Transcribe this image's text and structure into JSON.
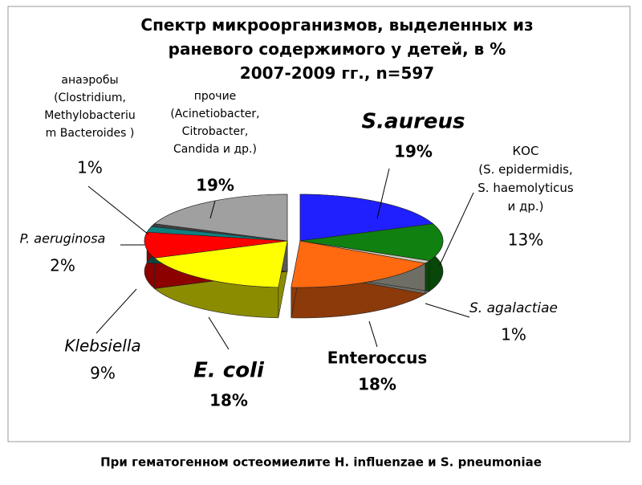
{
  "chart_data": {
    "type": "pie",
    "title": "Спектр микроорганизмов, выделенных из\nраневого содержимого у детей, в %\n2007-2009 гг., n=597",
    "caption": "При гематогенном остеомиелите H. influenzae и S. pneumoniae",
    "categories": [
      "S.aureus",
      "КОС\n(S. epidermidis,\nS. haemolyticus\nи др.)",
      "S. agalactiae",
      "Enteroccus",
      "E. coli",
      "Klebsiella",
      "P. aeruginosa",
      "анаэробы\n(Clostridium,\nMethylobacteriu\nm Bacteroides )",
      "прочие\n(Acinetiobacter,\nCitrobacter,\nCandida и др.)"
    ],
    "values": [
      19,
      13,
      1,
      18,
      18,
      9,
      2,
      1,
      19
    ],
    "value_labels": [
      "19%",
      "13%",
      "1%",
      "18%",
      "18%",
      "9%",
      "2%",
      "1%",
      "19%"
    ],
    "colors": [
      "#2020ff",
      "#108010",
      "#c8c8b8",
      "#ff6a10",
      "#ffff00",
      "#ff0000",
      "#108080",
      "#404040",
      "#a0a0a0"
    ]
  }
}
